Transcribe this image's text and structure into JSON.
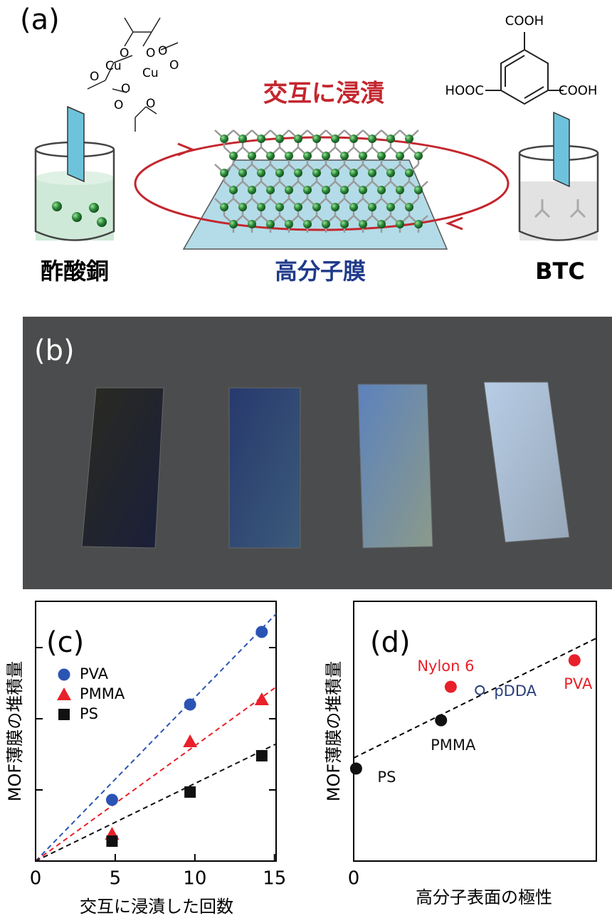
{
  "panel_a": {
    "label": "(a)",
    "center_title": "交互に浸漬",
    "left_label": "酢酸銅",
    "center_label": "高分子膜",
    "right_label": "BTC",
    "btc_groups": [
      "COOH",
      "HOOC",
      "COOH"
    ],
    "cu_atoms": [
      "Cu",
      "Cu"
    ],
    "o_atoms": [
      "O",
      "O",
      "O",
      "O",
      "O",
      "O",
      "O",
      "O"
    ]
  },
  "panel_b": {
    "label": "(b)"
  },
  "chart_data": [
    {
      "type": "scatter",
      "panel_label": "(c)",
      "xlabel": "交互に浸漬した回数",
      "ylabel": "MOF薄膜の堆積量",
      "xlim": [
        0,
        15.1
      ],
      "ylim": [
        0,
        3.65
      ],
      "xticks": [
        0,
        5,
        10,
        15
      ],
      "yticks": [
        1,
        2,
        3
      ],
      "series": [
        {
          "name": "PVA",
          "color": "#2a54b4",
          "marker": "circle",
          "x": [
            4.8,
            9.7,
            14.2
          ],
          "values": [
            0.86,
            2.2,
            3.22
          ],
          "fit_slope": 0.23
        },
        {
          "name": "PMMA",
          "color": "#e8202a",
          "marker": "triangle",
          "x": [
            4.8,
            9.7,
            14.2
          ],
          "values": [
            0.38,
            1.68,
            2.27
          ],
          "fit_slope": 0.162
        },
        {
          "name": "PS",
          "color": "#111111",
          "marker": "square",
          "x": [
            4.8,
            9.7,
            14.2
          ],
          "values": [
            0.28,
            0.97,
            1.48
          ],
          "fit_slope": 0.109
        }
      ]
    },
    {
      "type": "labeled-scatter",
      "panel_label": "(d)",
      "xlabel": "高分子表面の極性",
      "ylabel": "MOF薄膜の堆積量",
      "xlim": [
        0,
        10
      ],
      "ylim": [
        0,
        10
      ],
      "xticks": [
        0
      ],
      "fit": {
        "intercept": 3.97,
        "slope": 0.461
      },
      "points": [
        {
          "name": "PS",
          "x": 0.1,
          "y": 3.56,
          "color": "#111111",
          "filled": true
        },
        {
          "name": "PMMA",
          "x": 3.6,
          "y": 5.42,
          "color": "#111111",
          "filled": true
        },
        {
          "name": "pDDA",
          "x": 5.2,
          "y": 6.58,
          "color": "#2a3f7a",
          "filled": false
        },
        {
          "name": "Nylon 6",
          "x": 4.0,
          "y": 6.71,
          "color": "#e8202a",
          "filled": true
        },
        {
          "name": "PVA",
          "x": 9.1,
          "y": 7.73,
          "color": "#e8202a",
          "filled": true
        }
      ]
    }
  ]
}
